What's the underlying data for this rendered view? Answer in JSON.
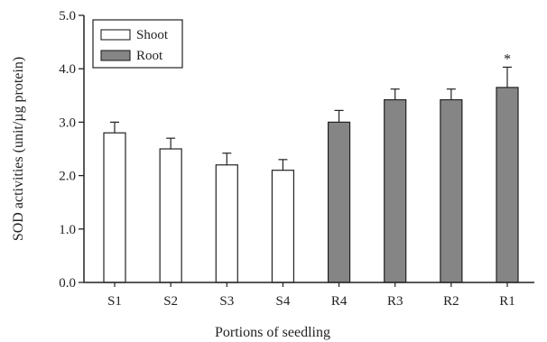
{
  "chart_data": {
    "type": "bar",
    "categories": [
      "S1",
      "S2",
      "S3",
      "S4",
      "R4",
      "R3",
      "R2",
      "R1"
    ],
    "values": [
      2.8,
      2.5,
      2.2,
      2.1,
      3.0,
      3.42,
      3.42,
      3.65
    ],
    "errors": [
      0.2,
      0.2,
      0.22,
      0.2,
      0.22,
      0.2,
      0.2,
      0.38
    ],
    "groups": [
      "Shoot",
      "Shoot",
      "Shoot",
      "Shoot",
      "Root",
      "Root",
      "Root",
      "Root"
    ],
    "series": [
      {
        "name": "Shoot",
        "color": "#ffffff"
      },
      {
        "name": "Root",
        "color": "#858585"
      }
    ],
    "annotations": [
      {
        "category": "R1",
        "text": "*"
      }
    ],
    "xlabel": "Portions of seedling",
    "ylabel": "SOD activities (unit/µg protein)",
    "ylim": [
      0,
      5
    ],
    "yticks": [
      "0.0",
      "1.0",
      "2.0",
      "3.0",
      "4.0",
      "5.0"
    ],
    "grid": false,
    "legend": "top-left"
  }
}
